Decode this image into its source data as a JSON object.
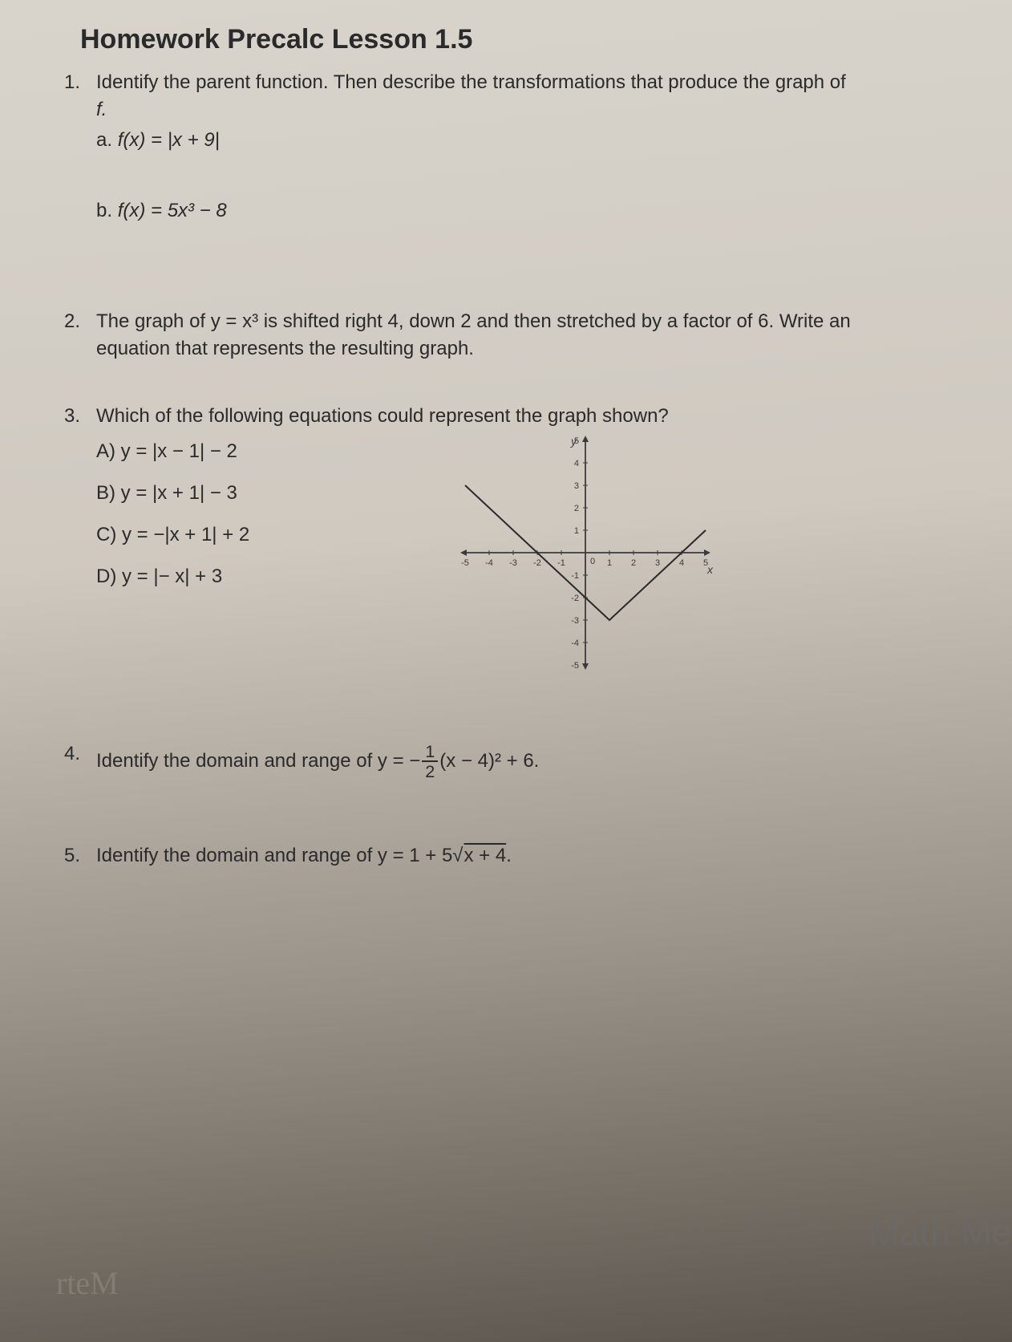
{
  "title": "Homework   Precalc Lesson 1.5",
  "q1": {
    "num": "1.",
    "text_a": "Identify the parent function. Then describe the transformations that produce the graph of",
    "text_b": "f.",
    "part_a_label": "a.  ",
    "part_a_eq": "f(x) = |x + 9|",
    "part_b_label": "b.  ",
    "part_b_eq": "f(x) = 5x³ − 8"
  },
  "q2": {
    "num": "2.",
    "text_a": "The graph of  y = x³  is shifted right 4, down  2 and then stretched by a factor of  6.  Write an",
    "text_b": "equation that represents the resulting graph."
  },
  "q3": {
    "num": "3.",
    "text": "Which of the following equations could represent the graph shown?",
    "opt_a": "A)  y = |x − 1| − 2",
    "opt_b": "B)  y = |x + 1| − 3",
    "opt_c": "C)  y = −|x + 1| + 2",
    "opt_d": "D)  y = |− x| + 3",
    "graph": {
      "type": "line",
      "xlim": [
        -5,
        5
      ],
      "ylim": [
        -5,
        5
      ],
      "xtick_step": 1,
      "ytick_step": 1,
      "axis_color": "#3a3a3a",
      "line_color": "#2a2a2a",
      "line_width": 2,
      "y_label": "y",
      "x_label": "x",
      "points": [
        [
          -5,
          3
        ],
        [
          1,
          -3
        ],
        [
          5,
          1
        ]
      ],
      "background": "transparent",
      "xticks": [
        "-5",
        "-4",
        "-3",
        "-2",
        "-1",
        "0",
        "1",
        "2",
        "3",
        "4",
        "5"
      ],
      "yticks": [
        "5",
        "4",
        "3",
        "2",
        "1",
        "-1",
        "-2",
        "-3",
        "-4",
        "-5"
      ]
    }
  },
  "q4": {
    "num": "4.",
    "text_pre": "Identify the domain and range of  y = −",
    "frac_num": "1",
    "frac_den": "2",
    "text_post": "(x − 4)² + 6."
  },
  "q5": {
    "num": "5.",
    "text_pre": "Identify the domain and range of  y = 1 + 5√",
    "sqrt_inner": "x + 4",
    "text_post": "."
  },
  "watermark": "Math Me",
  "watermark2": "rteM"
}
